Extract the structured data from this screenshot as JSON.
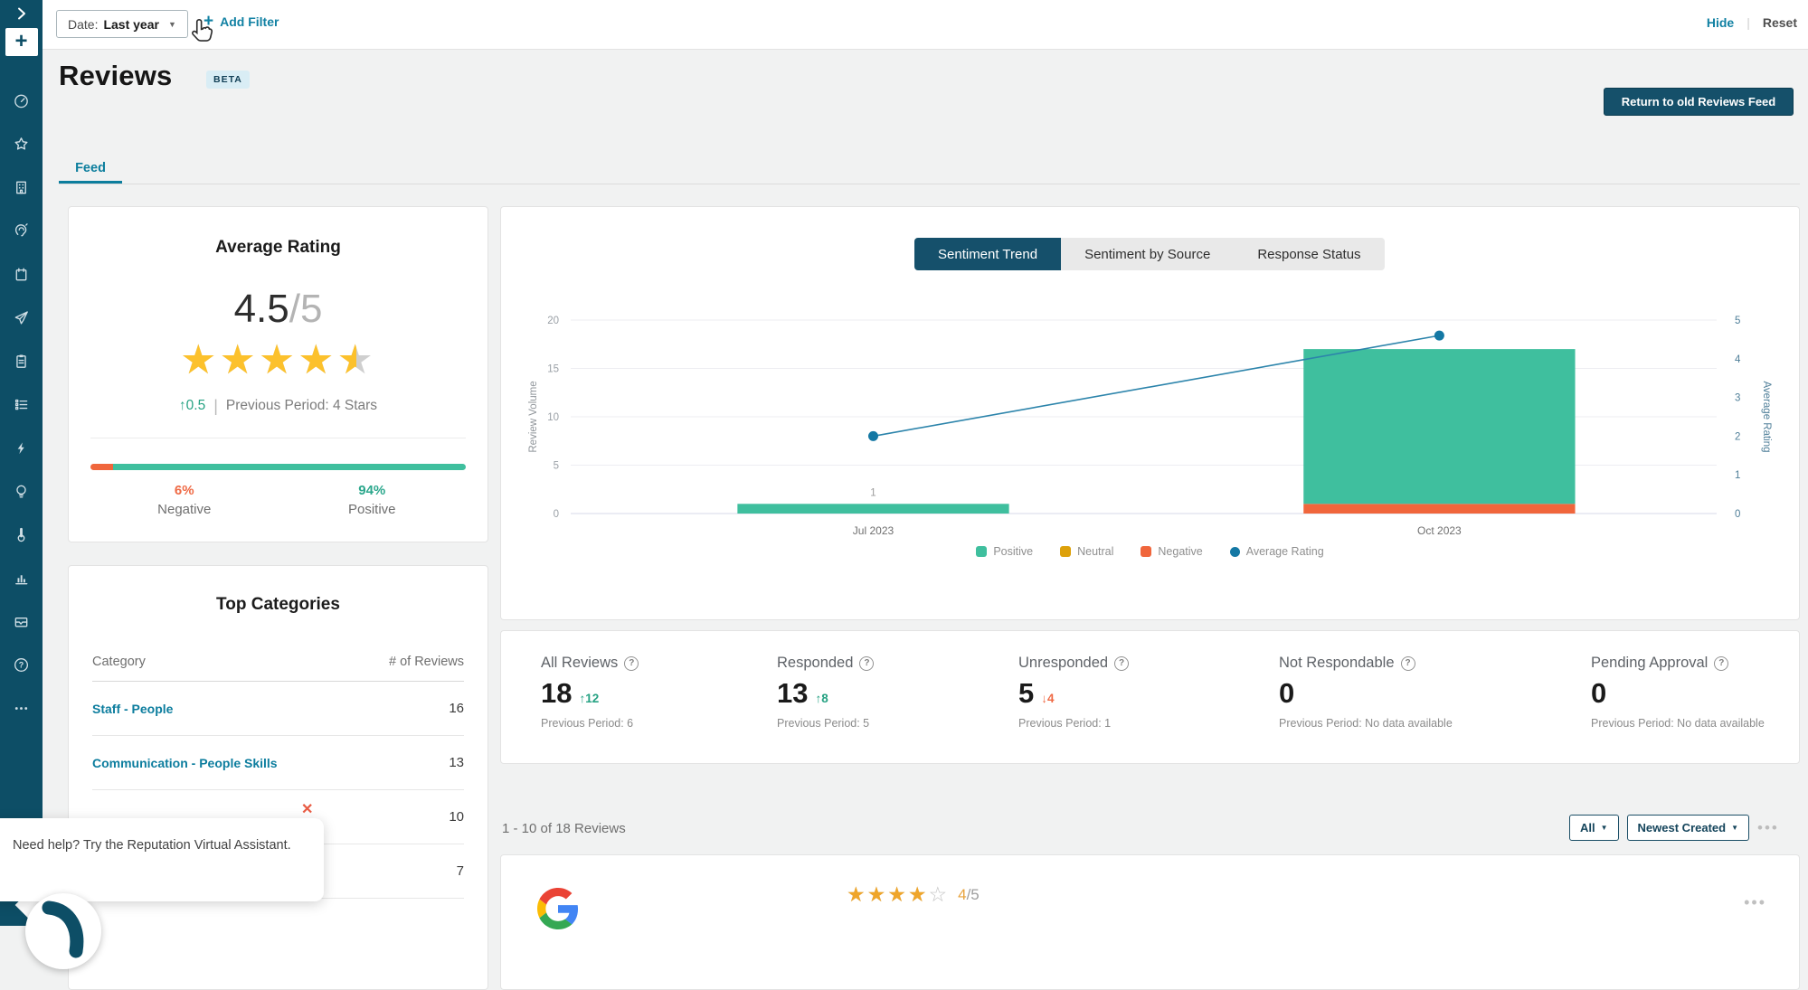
{
  "topbar": {
    "date_label": "Date:",
    "date_value": "Last year",
    "add_filter": "Add Filter",
    "hide": "Hide",
    "reset": "Reset"
  },
  "sidebar": {
    "icons": [
      "dashboard",
      "reviews",
      "locations",
      "social-listening",
      "calendar",
      "messaging",
      "surveys",
      "actions",
      "automation",
      "insights",
      "experience",
      "reports",
      "inbox",
      "help",
      "more"
    ]
  },
  "header": {
    "title": "Reviews",
    "beta_badge": "BETA",
    "return_button": "Return to old Reviews Feed",
    "feed_tab": "Feed"
  },
  "average_rating": {
    "title": "Average Rating",
    "value": "4.5",
    "max": "/5",
    "stars_value": 4.5,
    "delta": "↑0.5",
    "delta_color": "#26a283",
    "previous": "Previous Period: 4 Stars",
    "negative_pct": "6%",
    "negative_label": "Negative",
    "positive_pct": "94%",
    "positive_label": "Positive"
  },
  "top_categories": {
    "title": "Top Categories",
    "col_category": "Category",
    "col_reviews": "# of Reviews",
    "rows": [
      {
        "name": "Staff - People",
        "count": "16"
      },
      {
        "name": "Communication - People Skills",
        "count": "13"
      },
      {
        "name": "",
        "count": "10"
      },
      {
        "name": "",
        "count": "7"
      }
    ]
  },
  "chart_tabs": [
    {
      "label": "Sentiment Trend"
    },
    {
      "label": "Sentiment by Source"
    },
    {
      "label": "Response Status"
    }
  ],
  "chart_data": {
    "type": "combo_stacked_bar_line",
    "title": "Sentiment Trend",
    "categories": [
      "Jul 2023",
      "Oct 2023"
    ],
    "series": [
      {
        "name": "Positive",
        "type": "bar",
        "color": "#3fbf9e",
        "values": [
          1,
          16
        ]
      },
      {
        "name": "Neutral",
        "type": "bar",
        "color": "#dda10b",
        "values": [
          0,
          0
        ]
      },
      {
        "name": "Negative",
        "type": "bar",
        "color": "#f0663c",
        "values": [
          0,
          1
        ]
      },
      {
        "name": "Average Rating",
        "type": "line",
        "axis": "right",
        "color": "#1478a4",
        "values": [
          2.0,
          4.6
        ]
      }
    ],
    "bar_total_labels": [
      "1",
      ""
    ],
    "left_axis": {
      "label": "Review Volume",
      "min": 0,
      "max": 20,
      "ticks": [
        0,
        5,
        10,
        15,
        20
      ]
    },
    "right_axis": {
      "label": "Average Rating",
      "min": 0,
      "max": 5,
      "ticks": [
        0,
        1,
        2,
        3,
        4,
        5
      ]
    },
    "grid": true,
    "legend_position": "bottom",
    "legend": [
      {
        "label": "Positive",
        "color": "#3fbf9e",
        "shape": "square"
      },
      {
        "label": "Neutral",
        "color": "#dda10b",
        "shape": "square"
      },
      {
        "label": "Negative",
        "color": "#f0663c",
        "shape": "square"
      },
      {
        "label": "Average Rating",
        "color": "#1478a4",
        "shape": "circle"
      }
    ]
  },
  "stats": [
    {
      "label": "All Reviews",
      "value": "18",
      "delta": "↑12",
      "delta_color": "#26a283",
      "previous": "Previous Period: 6"
    },
    {
      "label": "Responded",
      "value": "13",
      "delta": "↑8",
      "delta_color": "#26a283",
      "previous": "Previous Period: 5"
    },
    {
      "label": "Unresponded",
      "value": "5",
      "delta": "↓4",
      "delta_color": "#ef6a45",
      "previous": "Previous Period: 1"
    },
    {
      "label": "Not Respondable",
      "value": "0",
      "delta": "",
      "delta_color": "",
      "previous": "Previous Period: No data available"
    },
    {
      "label": "Pending Approval",
      "value": "0",
      "delta": "",
      "delta_color": "",
      "previous": "Previous Period: No data available"
    }
  ],
  "review_feed": {
    "count_text": "1 - 10 of 18 Reviews",
    "filter_button": "All",
    "sort_button": "Newest Created",
    "first_review": {
      "source": "Google",
      "rating": 4,
      "rating_text": "4",
      "rating_suffix": "/5"
    }
  },
  "tooltip": {
    "text": "Need help? Try the Reputation Virtual Assistant."
  },
  "icons": {
    "star_row": "★★★★★",
    "star_outline_row": "☆☆☆☆☆",
    "dropdown": "▼",
    "plus": "+",
    "question": "?",
    "close": "✕",
    "ellipsis": "•••",
    "divider": "|",
    "chevron_right": "❯"
  },
  "colors": {
    "sidebar": "#0d4e66",
    "accent_teal": "#1181a3",
    "dark_teal_button": "#15506a",
    "positive_green": "#3fbf9e",
    "negative_orange": "#f0663c",
    "neutral_amber": "#dda10b",
    "rating_blue": "#1478a4",
    "star_yellow": "#fcc12c"
  }
}
